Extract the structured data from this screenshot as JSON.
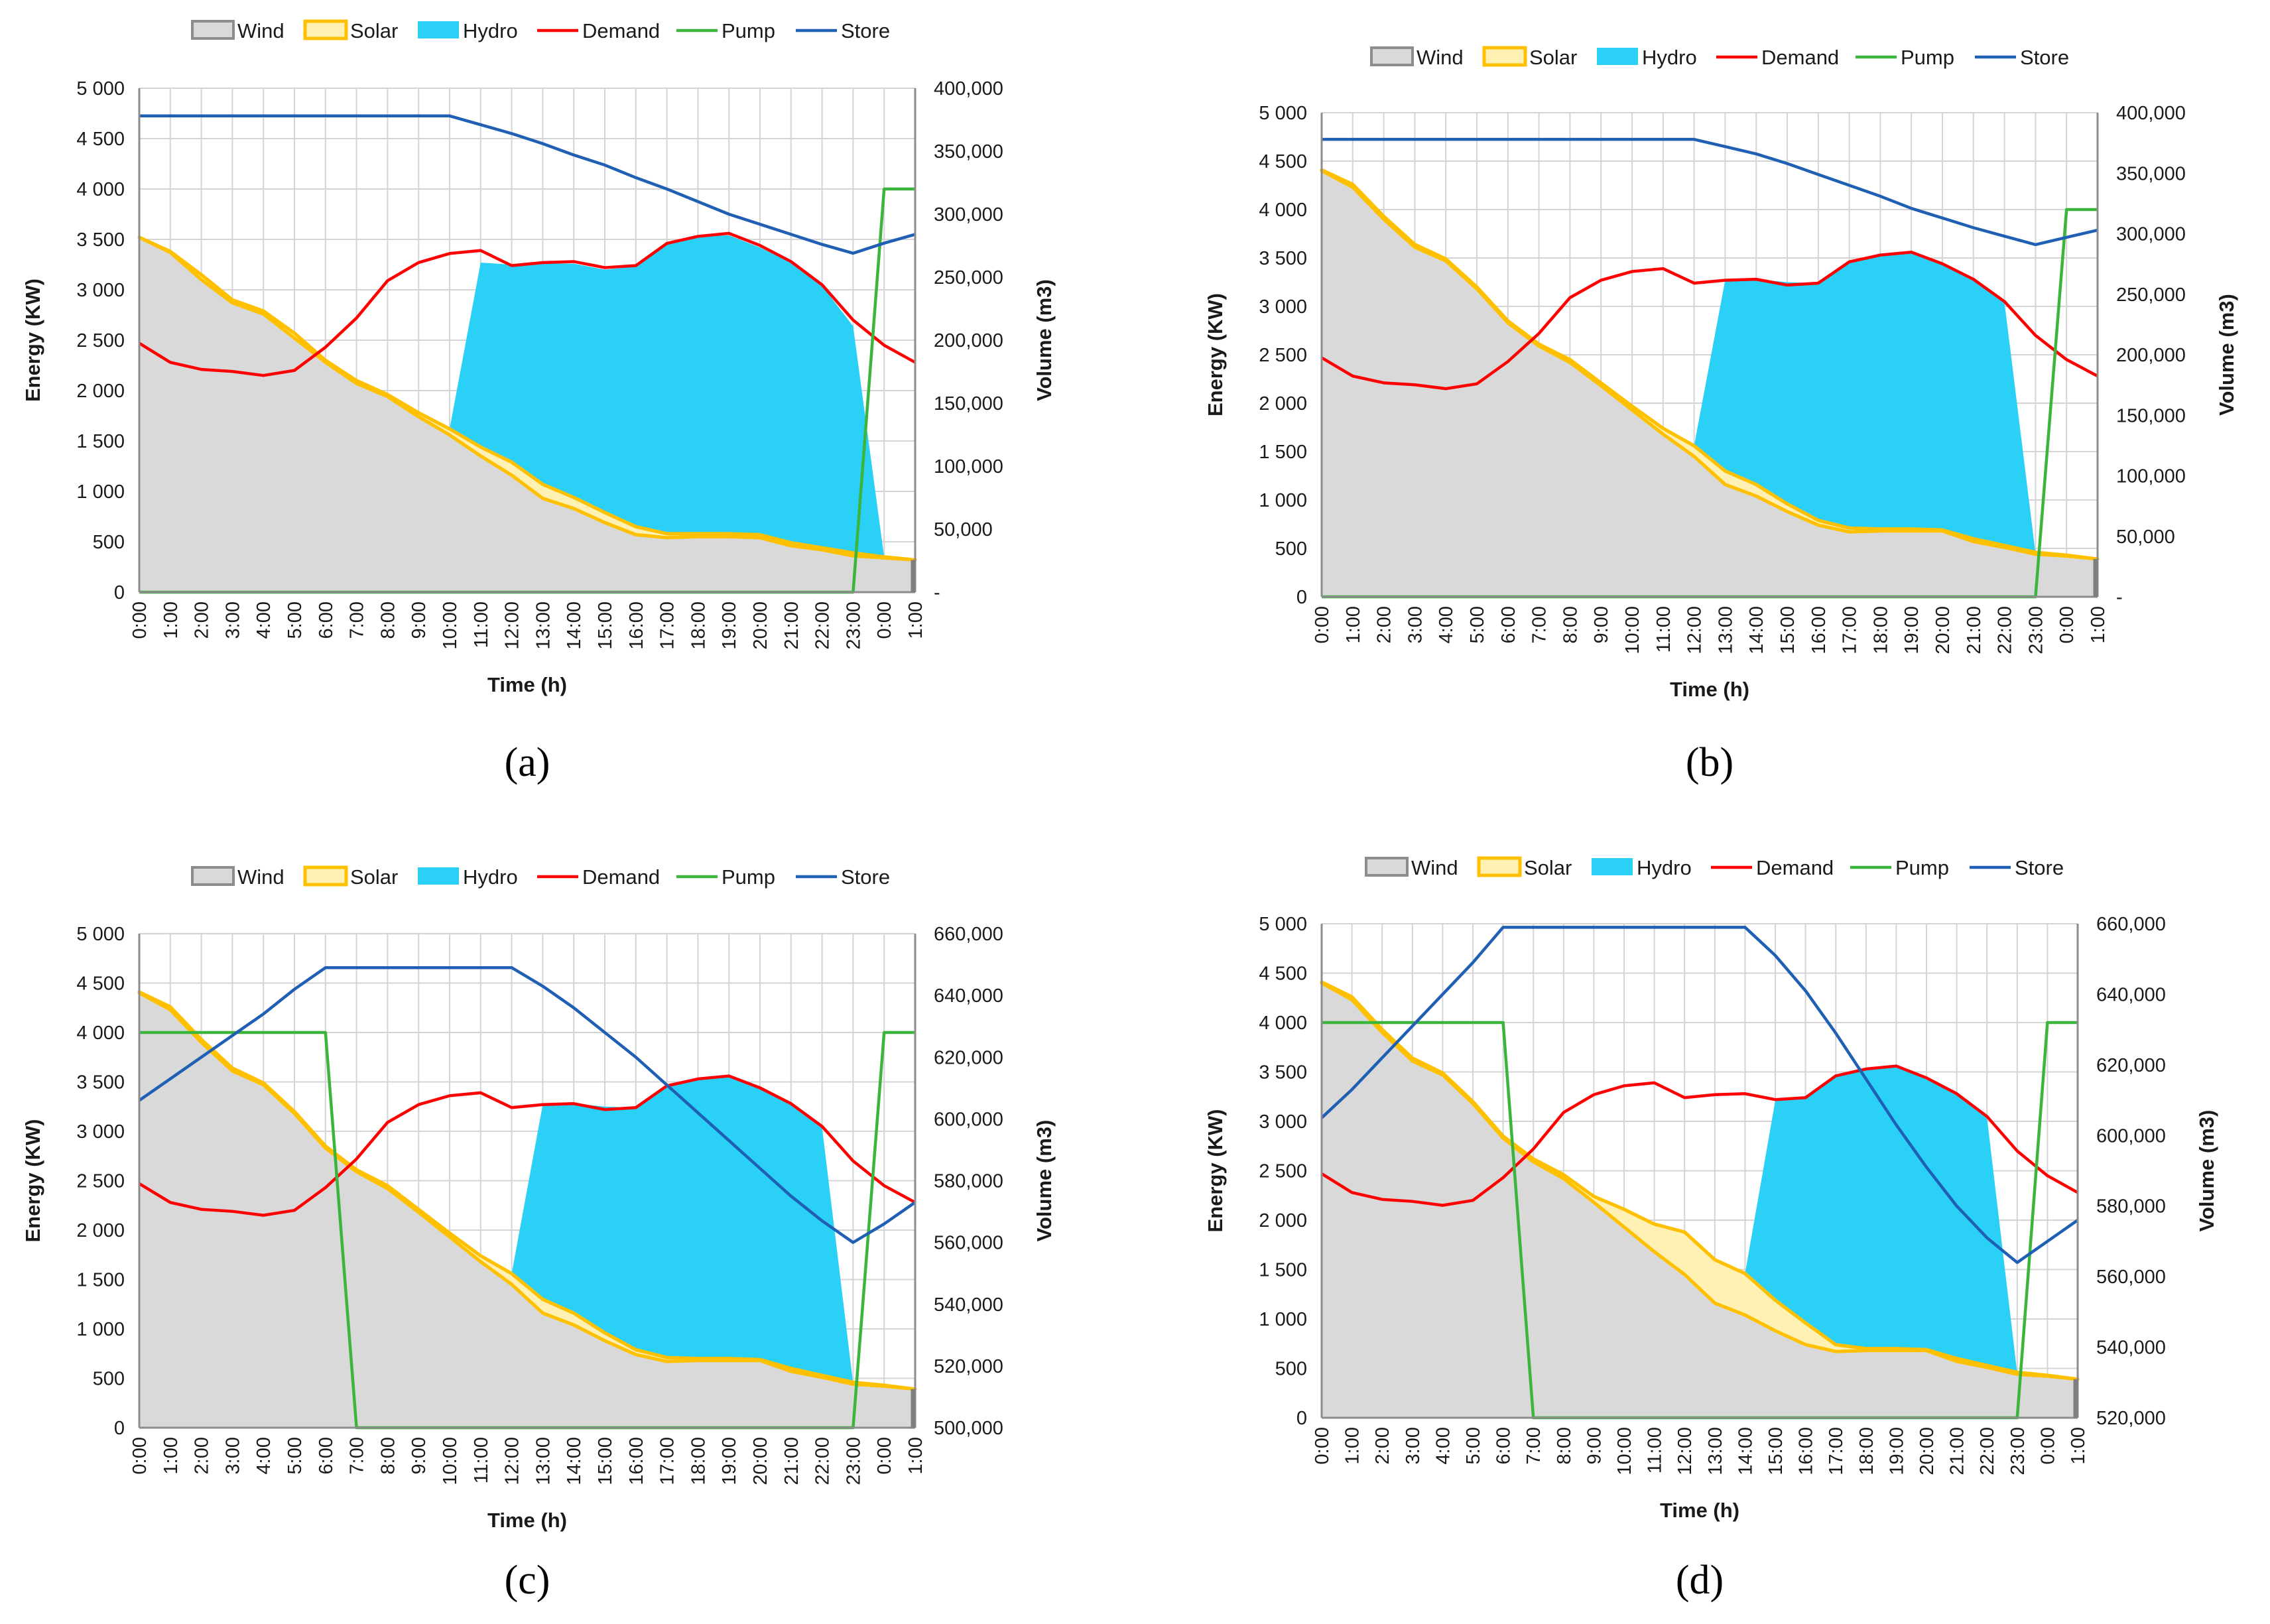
{
  "legend": [
    "Wind",
    "Solar",
    "Hydro",
    "Demand",
    "Pump",
    "Store"
  ],
  "colors": {
    "wind_fill": "#d9d9d9",
    "wind_line": "#8c8c8c",
    "solar_fill": "#fff0b3",
    "solar_line": "#ffc000",
    "hydro_fill": "#2ad0f5",
    "demand": "#ff0000",
    "pump": "#3cb53c",
    "store": "#1f5fb4",
    "grid": "#d4d4d4"
  },
  "chart_data": [
    {
      "type": "area",
      "panel_label": "(a)",
      "xlabel": "Time (h)",
      "ylabel": "Energy (KW)",
      "y2label": "Volume (m3)",
      "x": [
        "0:00",
        "1:00",
        "2:00",
        "3:00",
        "4:00",
        "5:00",
        "6:00",
        "7:00",
        "8:00",
        "9:00",
        "10:00",
        "11:00",
        "12:00",
        "13:00",
        "14:00",
        "15:00",
        "16:00",
        "17:00",
        "18:00",
        "19:00",
        "20:00",
        "21:00",
        "22:00",
        "23:00",
        "0:00",
        "1:00"
      ],
      "ylim": [
        0,
        5000
      ],
      "yticks": [
        "0",
        "500",
        "1 000",
        "1 500",
        "2 000",
        "2 500",
        "3 000",
        "3 500",
        "4 000",
        "4 500",
        "5 000"
      ],
      "y2lim": [
        0,
        400000
      ],
      "y2ticks": [
        "-",
        "50,000",
        "100,000",
        "150,000",
        "200,000",
        "250,000",
        "300,000",
        "350,000",
        "400,000"
      ],
      "series": [
        {
          "name": "Wind",
          "values": [
            3520,
            3370,
            3100,
            2870,
            2760,
            2520,
            2280,
            2070,
            1940,
            1740,
            1560,
            1350,
            1160,
            930,
            830,
            690,
            570,
            540,
            550,
            550,
            540,
            460,
            420,
            360,
            340,
            320
          ]
        },
        {
          "name": "Solar",
          "values": [
            3520,
            3380,
            3150,
            2900,
            2790,
            2570,
            2300,
            2100,
            1960,
            1780,
            1620,
            1440,
            1290,
            1070,
            940,
            790,
            650,
            580,
            580,
            580,
            570,
            490,
            440,
            390,
            350,
            320
          ]
        },
        {
          "name": "Hydro",
          "values": [
            3520,
            3380,
            3150,
            2900,
            2790,
            2570,
            2300,
            2100,
            1960,
            1780,
            1620,
            3270,
            3250,
            3260,
            3260,
            3200,
            3230,
            3460,
            3530,
            3540,
            3420,
            3270,
            3040,
            2640,
            350,
            320
          ]
        },
        {
          "name": "Demand",
          "values": [
            2470,
            2280,
            2210,
            2190,
            2150,
            2200,
            2430,
            2720,
            3090,
            3270,
            3360,
            3390,
            3240,
            3270,
            3280,
            3220,
            3240,
            3460,
            3530,
            3560,
            3440,
            3280,
            3050,
            2700,
            2450,
            2280
          ]
        },
        {
          "name": "Pump",
          "values": [
            0,
            0,
            0,
            0,
            0,
            0,
            0,
            0,
            0,
            0,
            0,
            0,
            0,
            0,
            0,
            0,
            0,
            0,
            0,
            0,
            0,
            0,
            0,
            0,
            4000,
            4000
          ]
        },
        {
          "name": "Store",
          "axis": "right",
          "values": [
            378000,
            378000,
            378000,
            378000,
            378000,
            378000,
            378000,
            378000,
            378000,
            378000,
            378000,
            371000,
            364000,
            356000,
            347000,
            339000,
            329000,
            320000,
            310000,
            300000,
            292000,
            284000,
            276000,
            269000,
            277000,
            284000
          ]
        }
      ]
    },
    {
      "type": "area",
      "panel_label": "(b)",
      "xlabel": "Time (h)",
      "ylabel": "Energy (KW)",
      "y2label": "Volume (m3)",
      "x": [
        "0:00",
        "1:00",
        "2:00",
        "3:00",
        "4:00",
        "5:00",
        "6:00",
        "7:00",
        "8:00",
        "9:00",
        "10:00",
        "11:00",
        "12:00",
        "13:00",
        "14:00",
        "15:00",
        "16:00",
        "17:00",
        "18:00",
        "19:00",
        "20:00",
        "21:00",
        "22:00",
        "23:00",
        "0:00",
        "1:00"
      ],
      "ylim": [
        0,
        5000
      ],
      "yticks": [
        "0",
        "500",
        "1 000",
        "1 500",
        "2 000",
        "2 500",
        "3 000",
        "3 500",
        "4 000",
        "4 500",
        "5 000"
      ],
      "y2lim": [
        0,
        400000
      ],
      "y2ticks": [
        "-",
        "50,000",
        "100,000",
        "150,000",
        "200,000",
        "250,000",
        "300,000",
        "350,000",
        "400,000"
      ],
      "series": [
        {
          "name": "Wind",
          "values": [
            4400,
            4230,
            3900,
            3610,
            3470,
            3180,
            2830,
            2590,
            2420,
            2180,
            1930,
            1680,
            1450,
            1160,
            1040,
            880,
            740,
            670,
            680,
            680,
            680,
            570,
            510,
            440,
            420,
            390
          ]
        },
        {
          "name": "Solar",
          "values": [
            4410,
            4260,
            3930,
            3640,
            3490,
            3200,
            2850,
            2610,
            2450,
            2210,
            1970,
            1740,
            1560,
            1300,
            1160,
            960,
            790,
            710,
            700,
            700,
            690,
            600,
            530,
            460,
            430,
            390
          ]
        },
        {
          "name": "Hydro",
          "values": [
            4410,
            4260,
            3930,
            3640,
            3490,
            3200,
            2850,
            2610,
            2450,
            2210,
            1970,
            1740,
            1560,
            3270,
            3280,
            3250,
            3240,
            3460,
            3530,
            3560,
            3440,
            3280,
            3040,
            450,
            430,
            390
          ]
        },
        {
          "name": "Demand",
          "values": [
            2470,
            2280,
            2210,
            2190,
            2150,
            2200,
            2430,
            2720,
            3090,
            3270,
            3360,
            3390,
            3240,
            3270,
            3280,
            3220,
            3240,
            3460,
            3530,
            3560,
            3440,
            3280,
            3050,
            2700,
            2450,
            2280
          ]
        },
        {
          "name": "Pump",
          "values": [
            0,
            0,
            0,
            0,
            0,
            0,
            0,
            0,
            0,
            0,
            0,
            0,
            0,
            0,
            0,
            0,
            0,
            0,
            0,
            0,
            0,
            0,
            0,
            0,
            4000,
            4000
          ]
        },
        {
          "name": "Store",
          "axis": "right",
          "values": [
            378000,
            378000,
            378000,
            378000,
            378000,
            378000,
            378000,
            378000,
            378000,
            378000,
            378000,
            378000,
            378000,
            372000,
            366000,
            358000,
            349000,
            340000,
            331000,
            321000,
            313000,
            305000,
            298000,
            291000,
            297000,
            303000
          ]
        }
      ]
    },
    {
      "type": "area",
      "panel_label": "(c)",
      "xlabel": "Time (h)",
      "ylabel": "Energy (KW)",
      "y2label": "Volume (m3)",
      "x": [
        "0:00",
        "1:00",
        "2:00",
        "3:00",
        "4:00",
        "5:00",
        "6:00",
        "7:00",
        "8:00",
        "9:00",
        "10:00",
        "11:00",
        "12:00",
        "13:00",
        "14:00",
        "15:00",
        "16:00",
        "17:00",
        "18:00",
        "19:00",
        "20:00",
        "21:00",
        "22:00",
        "23:00",
        "0:00",
        "1:00"
      ],
      "ylim": [
        0,
        5000
      ],
      "yticks": [
        "0",
        "500",
        "1 000",
        "1 500",
        "2 000",
        "2 500",
        "3 000",
        "3 500",
        "4 000",
        "4 500",
        "5 000"
      ],
      "y2lim": [
        500000,
        660000
      ],
      "y2ticks": [
        "500,000",
        "520,000",
        "540,000",
        "560,000",
        "580,000",
        "600,000",
        "620,000",
        "640,000",
        "660,000"
      ],
      "series": [
        {
          "name": "Wind",
          "values": [
            4400,
            4230,
            3900,
            3610,
            3470,
            3180,
            2830,
            2590,
            2420,
            2180,
            1930,
            1680,
            1450,
            1160,
            1040,
            880,
            740,
            670,
            680,
            680,
            680,
            570,
            510,
            440,
            420,
            390
          ]
        },
        {
          "name": "Solar",
          "values": [
            4410,
            4260,
            3930,
            3640,
            3490,
            3200,
            2850,
            2610,
            2450,
            2210,
            1970,
            1740,
            1560,
            1300,
            1160,
            960,
            790,
            710,
            700,
            700,
            690,
            600,
            530,
            460,
            430,
            390
          ]
        },
        {
          "name": "Hydro",
          "values": [
            4410,
            4260,
            3930,
            3640,
            3490,
            3200,
            2850,
            2610,
            2450,
            2210,
            1970,
            1740,
            1560,
            3270,
            3280,
            3250,
            3240,
            3460,
            3530,
            3560,
            3440,
            3280,
            3040,
            450,
            430,
            390
          ]
        },
        {
          "name": "Demand",
          "values": [
            2470,
            2280,
            2210,
            2190,
            2150,
            2200,
            2430,
            2720,
            3090,
            3270,
            3360,
            3390,
            3240,
            3270,
            3280,
            3220,
            3240,
            3460,
            3530,
            3560,
            3440,
            3280,
            3050,
            2700,
            2450,
            2280
          ]
        },
        {
          "name": "Pump",
          "values": [
            4000,
            4000,
            4000,
            4000,
            4000,
            4000,
            4000,
            0,
            0,
            0,
            0,
            0,
            0,
            0,
            0,
            0,
            0,
            0,
            0,
            0,
            0,
            0,
            0,
            0,
            4000,
            4000
          ]
        },
        {
          "name": "Store",
          "axis": "right",
          "values": [
            606000,
            613000,
            620000,
            627000,
            634000,
            642000,
            649000,
            649000,
            649000,
            649000,
            649000,
            649000,
            649000,
            643000,
            636000,
            628000,
            620000,
            611000,
            602000,
            593000,
            584000,
            575000,
            567000,
            560000,
            566000,
            573000
          ]
        }
      ]
    },
    {
      "type": "area",
      "panel_label": "(d)",
      "xlabel": "Time (h)",
      "ylabel": "Energy (KW)",
      "y2label": "Volume (m3)",
      "x": [
        "0:00",
        "1:00",
        "2:00",
        "3:00",
        "4:00",
        "5:00",
        "6:00",
        "7:00",
        "8:00",
        "9:00",
        "10:00",
        "11:00",
        "12:00",
        "13:00",
        "14:00",
        "15:00",
        "16:00",
        "17:00",
        "18:00",
        "19:00",
        "20:00",
        "21:00",
        "22:00",
        "23:00",
        "0:00",
        "1:00"
      ],
      "ylim": [
        0,
        5000
      ],
      "yticks": [
        "0",
        "500",
        "1 000",
        "1 500",
        "2 000",
        "2 500",
        "3 000",
        "3 500",
        "4 000",
        "4 500",
        "5 000"
      ],
      "y2lim": [
        520000,
        660000
      ],
      "y2ticks": [
        "520,000",
        "540,000",
        "560,000",
        "580,000",
        "600,000",
        "620,000",
        "640,000",
        "660,000"
      ],
      "series": [
        {
          "name": "Wind",
          "values": [
            4400,
            4230,
            3900,
            3610,
            3470,
            3180,
            2830,
            2590,
            2420,
            2180,
            1930,
            1680,
            1450,
            1160,
            1040,
            880,
            740,
            670,
            680,
            680,
            680,
            570,
            510,
            440,
            420,
            390
          ]
        },
        {
          "name": "Solar",
          "values": [
            4410,
            4260,
            3930,
            3640,
            3490,
            3200,
            2850,
            2620,
            2460,
            2240,
            2110,
            1960,
            1880,
            1600,
            1460,
            1190,
            960,
            740,
            700,
            700,
            690,
            600,
            530,
            460,
            430,
            390
          ]
        },
        {
          "name": "Hydro",
          "values": [
            4410,
            4260,
            3930,
            3640,
            3490,
            3200,
            2850,
            2620,
            2460,
            2240,
            2110,
            1960,
            1880,
            1600,
            1460,
            3210,
            3240,
            3460,
            3530,
            3560,
            3440,
            3280,
            3040,
            450,
            430,
            390
          ]
        },
        {
          "name": "Demand",
          "values": [
            2470,
            2280,
            2210,
            2190,
            2150,
            2200,
            2430,
            2720,
            3090,
            3270,
            3360,
            3390,
            3240,
            3270,
            3280,
            3220,
            3240,
            3460,
            3530,
            3560,
            3440,
            3280,
            3050,
            2700,
            2450,
            2280
          ]
        },
        {
          "name": "Pump",
          "values": [
            4000,
            4000,
            4000,
            4000,
            4000,
            4000,
            4000,
            0,
            0,
            0,
            0,
            0,
            0,
            0,
            0,
            0,
            0,
            0,
            0,
            0,
            0,
            0,
            0,
            0,
            4000,
            4000
          ]
        },
        {
          "name": "Store",
          "axis": "right",
          "values": [
            605000,
            613000,
            622000,
            631000,
            640000,
            649000,
            659000,
            659000,
            659000,
            659000,
            659000,
            659000,
            659000,
            659000,
            659000,
            651000,
            641000,
            629000,
            616000,
            603000,
            591000,
            580000,
            571000,
            564000,
            570000,
            576000
          ]
        }
      ]
    }
  ]
}
